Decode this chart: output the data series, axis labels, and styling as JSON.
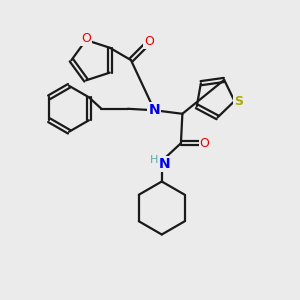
{
  "bg_color": "#ebebeb",
  "bond_color": "#1a1a1a",
  "N_color": "#0000ee",
  "O_color": "#ee0000",
  "S_color": "#aaaa00",
  "H_color": "#5aacac",
  "line_width": 1.6,
  "figsize": [
    3.0,
    3.0
  ],
  "dpi": 100,
  "xlim": [
    0,
    10
  ],
  "ylim": [
    0,
    10
  ]
}
